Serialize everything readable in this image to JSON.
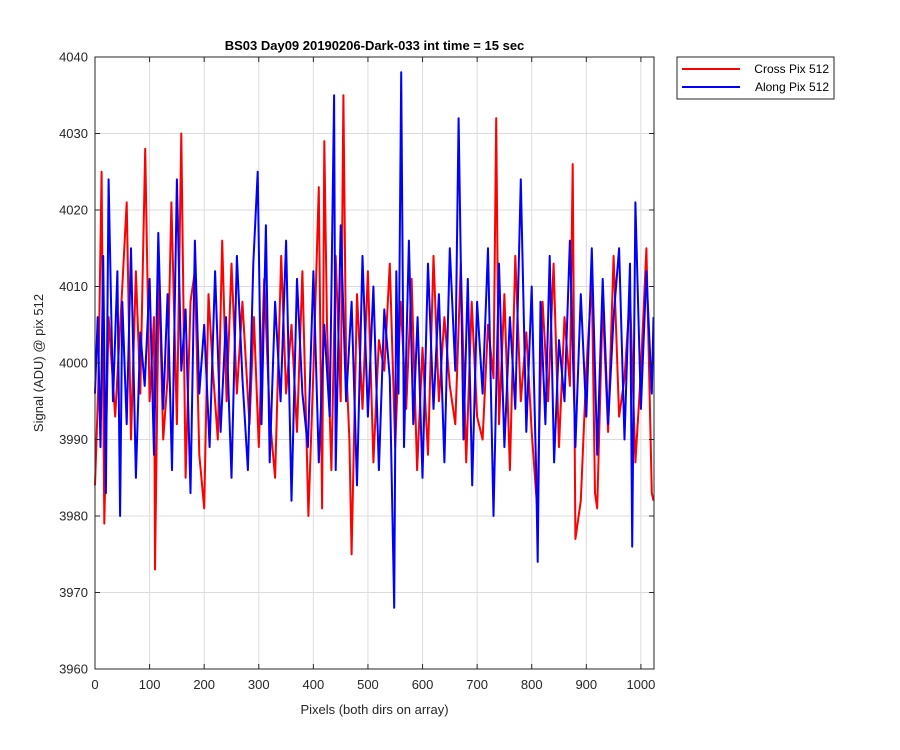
{
  "chart_data": {
    "type": "line",
    "title": "BS03 Day09 20190206-Dark-033 int time = 15 sec",
    "xlabel": "Pixels (both dirs on array)",
    "ylabel": "Signal (ADU) @ pix 512",
    "xlim": [
      0,
      1024
    ],
    "ylim": [
      3960,
      4040
    ],
    "xticks": [
      0,
      100,
      200,
      300,
      400,
      500,
      600,
      700,
      800,
      900,
      1000
    ],
    "yticks": [
      3960,
      3970,
      3980,
      3990,
      4000,
      4010,
      4020,
      4030,
      4040
    ],
    "grid": true,
    "legend_position": "outside-top-right",
    "series": [
      {
        "name": "Cross Pix 512",
        "color": "#ff0000",
        "x": [
          0,
          6,
          12,
          17,
          25,
          37,
          50,
          58,
          66,
          75,
          83,
          92,
          100,
          108,
          110,
          117,
          125,
          133,
          140,
          150,
          158,
          166,
          175,
          183,
          191,
          200,
          208,
          216,
          225,
          233,
          241,
          250,
          260,
          270,
          283,
          291,
          300,
          310,
          320,
          330,
          341,
          350,
          360,
          370,
          380,
          391,
          400,
          410,
          416,
          420,
          425,
          433,
          441,
          450,
          455,
          460,
          466,
          470,
          480,
          490,
          500,
          510,
          520,
          530,
          540,
          550,
          560,
          570,
          580,
          590,
          600,
          610,
          620,
          630,
          640,
          650,
          660,
          670,
          680,
          690,
          700,
          710,
          720,
          730,
          735,
          740,
          750,
          760,
          770,
          780,
          790,
          800,
          810,
          820,
          830,
          840,
          850,
          860,
          870,
          875,
          880,
          890,
          900,
          910,
          916,
          920,
          930,
          940,
          950,
          960,
          970,
          980,
          990,
          1000,
          1010,
          1020,
          1023
        ],
        "values": [
          3984,
          3997,
          4025,
          3979,
          4006,
          3993,
          4010,
          4021,
          3990,
          4012,
          3996,
          4028,
          3995,
          4006,
          3973,
          4012,
          3990,
          3998,
          4021,
          3992,
          4030,
          3985,
          4008,
          4012,
          3988,
          3981,
          4009,
          3999,
          3990,
          4016,
          3995,
          4013,
          3996,
          4008,
          3992,
          4006,
          3989,
          4011,
          3993,
          3985,
          4014,
          3996,
          4005,
          3991,
          4012,
          3980,
          3999,
          4023,
          3981,
          4029,
          4005,
          3986,
          4014,
          3995,
          4035,
          4000,
          3990,
          3975,
          4009,
          3994,
          4012,
          3987,
          4003,
          3999,
          4013,
          3989,
          4008,
          3994,
          4011,
          3986,
          4002,
          3988,
          4014,
          3995,
          4006,
          3997,
          3992,
          4013,
          3987,
          4008,
          3993,
          3990,
          4005,
          3998,
          4032,
          3992,
          4009,
          3986,
          4014,
          3995,
          4004,
          3991,
          3981,
          4008,
          3995,
          4013,
          3989,
          4006,
          3997,
          4026,
          3977,
          3982,
          3999,
          4011,
          3983,
          3981,
          4008,
          3991,
          4014,
          3993,
          3998,
          4009,
          3987,
          3999,
          4015,
          3983,
          3982
        ]
      },
      {
        "name": "Along Pix 512",
        "color": "#0000ff",
        "x": [
          0,
          5,
          10,
          15,
          20,
          25,
          33,
          41,
          46,
          50,
          58,
          66,
          75,
          83,
          91,
          100,
          108,
          116,
          125,
          133,
          141,
          150,
          158,
          166,
          175,
          183,
          191,
          200,
          210,
          220,
          230,
          240,
          250,
          260,
          270,
          280,
          290,
          298,
          305,
          313,
          320,
          330,
          340,
          350,
          360,
          370,
          380,
          390,
          400,
          410,
          420,
          430,
          438,
          441,
          450,
          460,
          470,
          480,
          490,
          500,
          510,
          520,
          530,
          540,
          548,
          552,
          556,
          561,
          566,
          575,
          583,
          591,
          600,
          610,
          620,
          630,
          640,
          650,
          660,
          666,
          675,
          683,
          691,
          700,
          710,
          720,
          730,
          740,
          750,
          760,
          770,
          780,
          790,
          800,
          808,
          811,
          816,
          825,
          833,
          841,
          850,
          860,
          870,
          880,
          890,
          900,
          910,
          920,
          930,
          940,
          950,
          960,
          970,
          980,
          984,
          990,
          1000,
          1010,
          1020,
          1023
        ],
        "values": [
          3996,
          4006,
          3989,
          4014,
          3983,
          4024,
          3995,
          4012,
          3980,
          4008,
          3992,
          4015,
          3985,
          4004,
          3997,
          4011,
          3988,
          4017,
          3994,
          4009,
          3986,
          4024,
          3999,
          4007,
          3983,
          4016,
          3996,
          4005,
          3989,
          4012,
          3991,
          4006,
          3985,
          4014,
          3998,
          3986,
          4013,
          4025,
          3992,
          4018,
          3987,
          4008,
          3995,
          4016,
          3982,
          4011,
          3996,
          3989,
          4012,
          3987,
          4005,
          3993,
          4035,
          3986,
          4018,
          3995,
          4008,
          3984,
          4014,
          3993,
          4010,
          3986,
          4007,
          3998,
          3968,
          4012,
          3996,
          4038,
          3989,
          4016,
          3992,
          4006,
          3985,
          4013,
          3994,
          4009,
          3987,
          4015,
          3999,
          4032,
          3990,
          4011,
          3984,
          4008,
          3996,
          4015,
          3980,
          4013,
          3989,
          4006,
          3994,
          4024,
          3991,
          4010,
          3986,
          3974,
          4008,
          3992,
          4014,
          3987,
          4003,
          3995,
          4016,
          3989,
          4009,
          3993,
          4015,
          3988,
          4011,
          3992,
          4006,
          4015,
          3990,
          4013,
          3976,
          4021,
          3994,
          4012,
          3996,
          4006
        ]
      }
    ]
  }
}
